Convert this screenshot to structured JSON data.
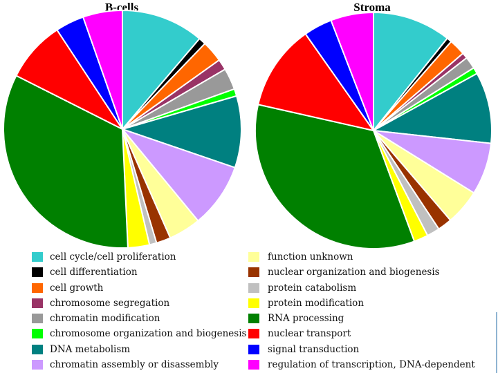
{
  "chart_data": {
    "type": "pie",
    "categories": [
      "cell cycle/cell proliferation",
      "cell differentiation",
      "cell growth",
      "chromosome segregation",
      "chromatin modification",
      "chromosome organization and biogenesis",
      "DNA metabolism",
      "chromatin assembly or disassembly",
      "function unknown",
      "nuclear organization and biogenesis",
      "protein catabolism",
      "protein modification",
      "RNA processing",
      "nuclear transport",
      "signal transduction",
      "regulation of transcription, DNA-dependent"
    ],
    "colors": [
      "#33cccc",
      "#000000",
      "#ff6600",
      "#993366",
      "#999999",
      "#00ff00",
      "#008080",
      "#cc99ff",
      "#ffff99",
      "#993300",
      "#c0c0c0",
      "#ffff00",
      "#008000",
      "#ff0000",
      "#0000ff",
      "#ff00ff"
    ],
    "series": [
      {
        "name": "B-cells",
        "values": [
          11.5,
          1.0,
          3.0,
          1.5,
          3.0,
          1.0,
          10.0,
          9.0,
          4.5,
          2.0,
          1.0,
          3.0,
          34.0,
          8.5,
          4.0,
          5.5
        ]
      },
      {
        "name": "Stroma",
        "values": [
          11.0,
          0.7,
          2.3,
          0.8,
          1.7,
          0.9,
          10.0,
          7.3,
          5.0,
          2.0,
          1.8,
          2.0,
          35.0,
          12.0,
          4.0,
          6.0
        ]
      }
    ]
  }
}
